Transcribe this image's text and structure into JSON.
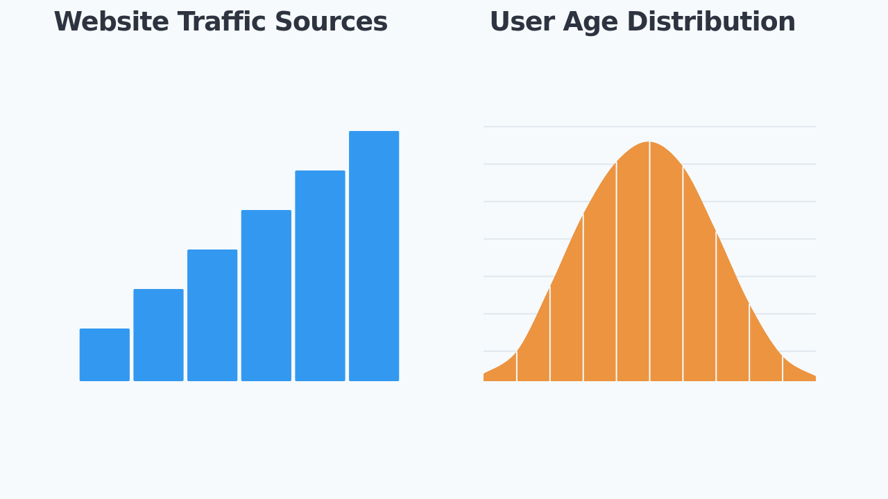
{
  "chart_data": [
    {
      "type": "bar",
      "title": "Website Traffic Sources",
      "categories": [
        null,
        null,
        null,
        null,
        null,
        null
      ],
      "values": [
        20,
        35,
        50,
        65,
        80,
        95
      ],
      "color": "#3399f0",
      "ylim": [
        0,
        100
      ]
    },
    {
      "type": "area",
      "title": "User Age Distribution",
      "x": [
        0,
        1,
        2,
        3,
        4,
        5,
        6,
        7,
        8,
        9,
        10
      ],
      "values": [
        3,
        12,
        38,
        67,
        88,
        96,
        86,
        60,
        31,
        10,
        2
      ],
      "color": "#ec9440",
      "xlim": [
        0,
        10
      ],
      "ylim": [
        0,
        110
      ],
      "yticks": [
        12,
        27,
        42,
        57,
        72,
        87,
        102
      ],
      "grid": true
    }
  ]
}
